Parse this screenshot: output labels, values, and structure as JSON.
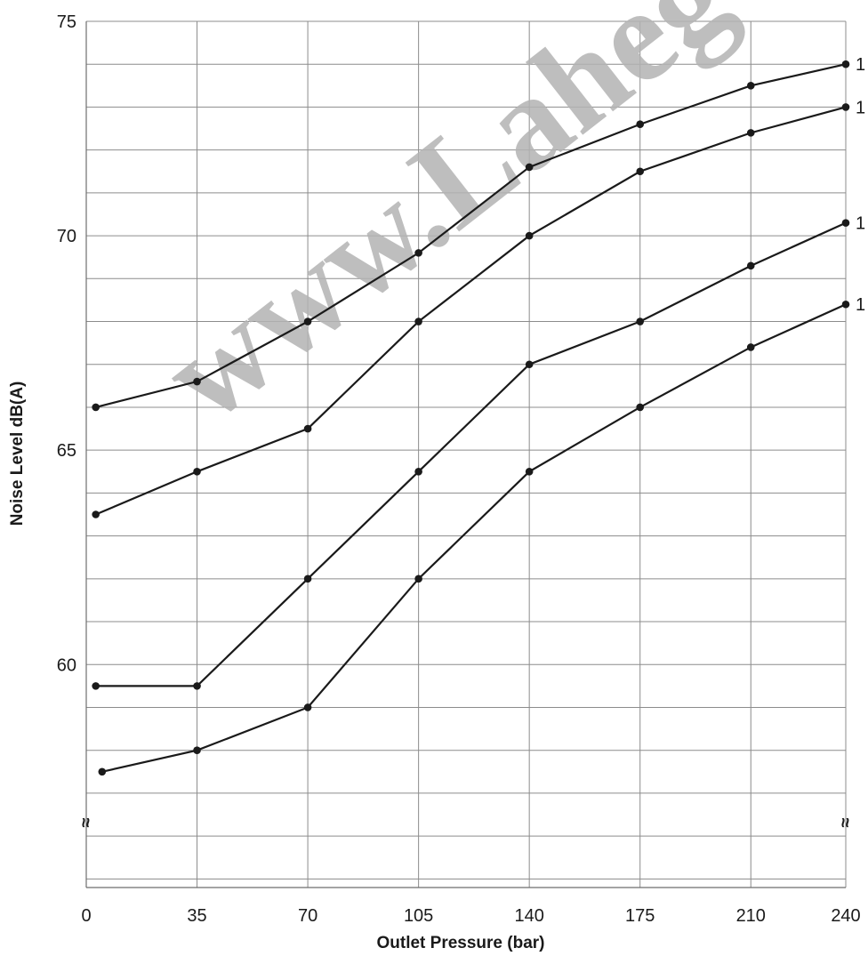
{
  "chart_data": {
    "type": "line",
    "title": "",
    "xlabel": "Outlet Pressure (bar)",
    "ylabel": "Noise Level dB(A)",
    "xlim": [
      0,
      240
    ],
    "ylim": [
      54.8,
      75
    ],
    "x_ticks": [
      0,
      35,
      70,
      105,
      140,
      175,
      210,
      240
    ],
    "x_tick_labels": [
      "0",
      "35",
      "70",
      "105",
      "140",
      "175",
      "210",
      "240"
    ],
    "y_ticks": [
      60,
      65,
      70,
      75
    ],
    "y_tick_labels": [
      "60",
      "65",
      "70",
      "75"
    ],
    "grid": true,
    "axis_break": "≈",
    "watermark": "www.Laheg",
    "series": [
      {
        "name": "1",
        "x": [
          3,
          35,
          70,
          105,
          140,
          175,
          210,
          240
        ],
        "y": [
          66.0,
          66.6,
          68.0,
          69.6,
          71.6,
          72.6,
          73.5,
          74.0
        ]
      },
      {
        "name": "1",
        "x": [
          3,
          35,
          70,
          105,
          140,
          175,
          210,
          240
        ],
        "y": [
          63.5,
          64.5,
          65.5,
          68.0,
          70.0,
          71.5,
          72.4,
          73.0
        ]
      },
      {
        "name": "1",
        "x": [
          3,
          35,
          70,
          105,
          140,
          175,
          210,
          240
        ],
        "y": [
          59.5,
          59.5,
          62.0,
          64.5,
          67.0,
          68.0,
          69.3,
          70.3
        ]
      },
      {
        "name": "1",
        "x": [
          5,
          35,
          70,
          105,
          140,
          175,
          210,
          240
        ],
        "y": [
          57.5,
          58.0,
          59.0,
          62.0,
          64.5,
          66.0,
          67.4,
          68.4
        ]
      }
    ]
  }
}
